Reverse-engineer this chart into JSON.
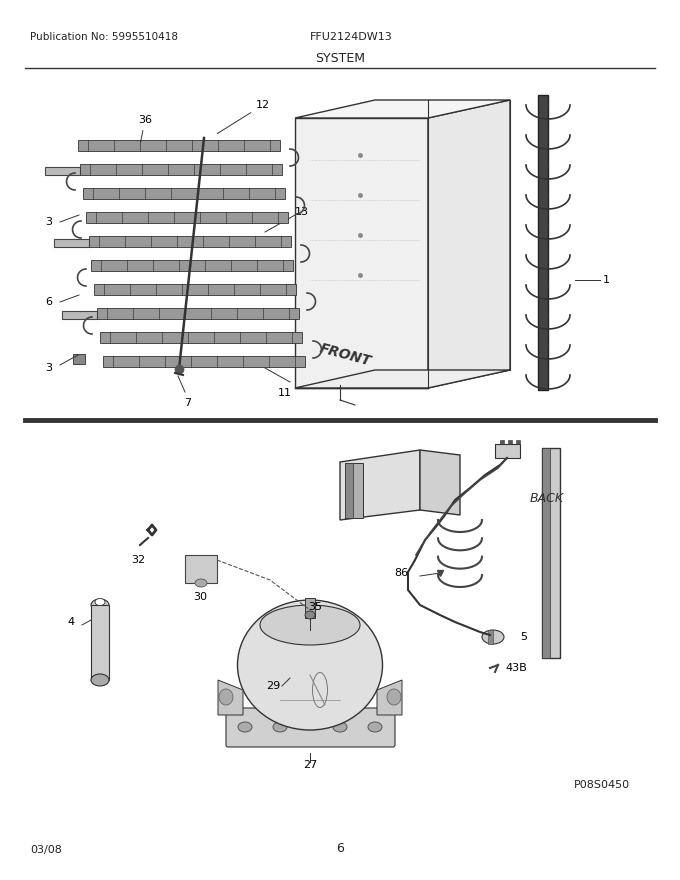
{
  "title": "SYSTEM",
  "pub_no": "Publication No: 5995510418",
  "model": "FFU2124DW13",
  "date": "03/08",
  "page": "6",
  "photo_id": "P08S0450",
  "bg_color": "#ffffff",
  "line_color": "#333333",
  "light_gray": "#aaaaaa",
  "mid_gray": "#888888",
  "dark_gray": "#555555"
}
